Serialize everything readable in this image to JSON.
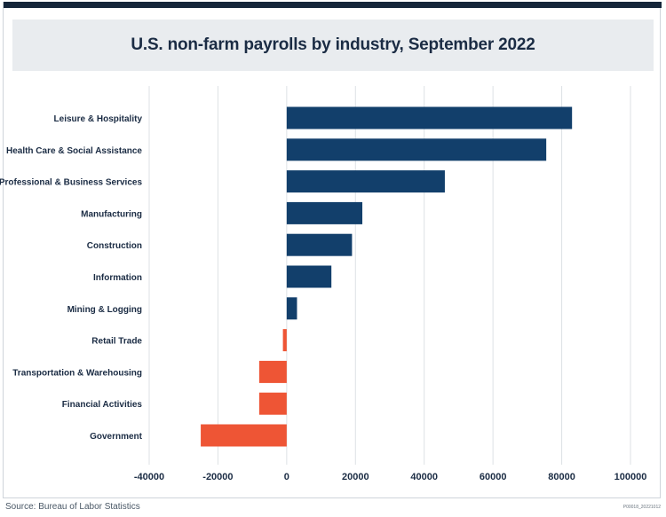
{
  "title": "U.S. non-farm payrolls by industry, September 2022",
  "source": "Source: Bureau of Labor Statistics",
  "code": "P00018_20221012",
  "colors": {
    "positive": "#123f6b",
    "negative": "#ee5535",
    "grid": "#dde1e5",
    "label": "#1b2c44"
  },
  "chart_data": {
    "type": "bar",
    "orientation": "horizontal",
    "title": "U.S. non-farm payrolls by industry, September 2022",
    "xlabel": "",
    "ylabel": "",
    "xlim": [
      -40000,
      100000
    ],
    "xticks": [
      -40000,
      -20000,
      0,
      20000,
      40000,
      60000,
      80000,
      100000
    ],
    "grid": true,
    "categories": [
      "Leisure & Hospitality",
      "Health Care & Social Assistance",
      "Professional & Business Services",
      "Manufacturing",
      "Construction",
      "Information",
      "Mining & Logging",
      "Retail Trade",
      "Transportation & Warehousing",
      "Financial Activities",
      "Government"
    ],
    "values": [
      83000,
      75500,
      46000,
      22000,
      19000,
      13000,
      3000,
      -1100,
      -8000,
      -8000,
      -25000
    ]
  }
}
